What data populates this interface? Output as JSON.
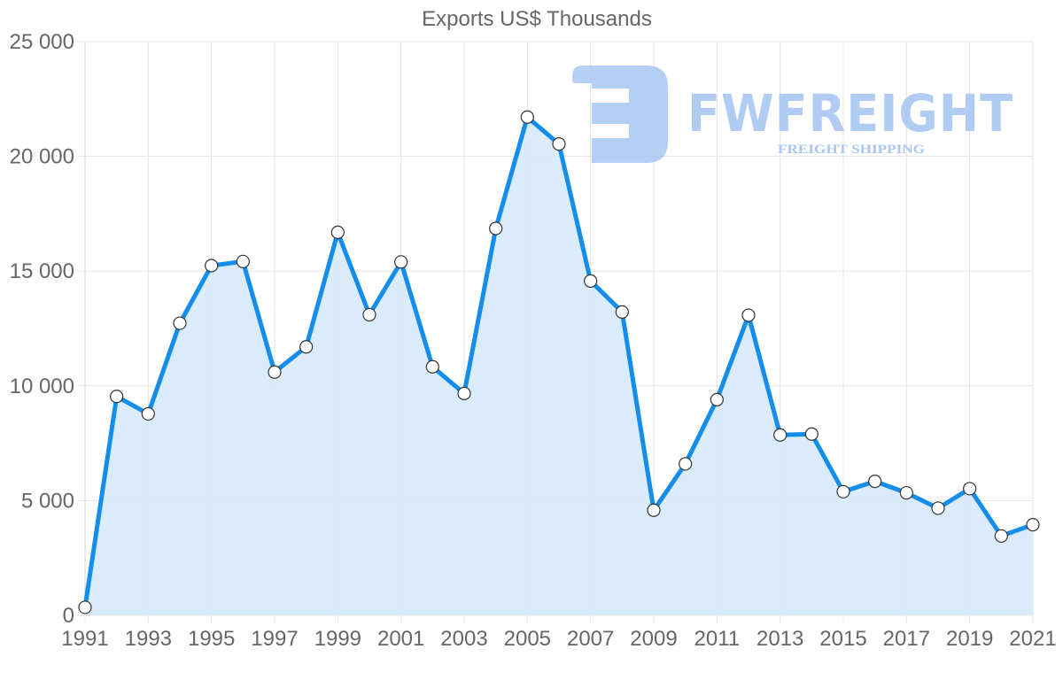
{
  "chart_data": {
    "type": "area",
    "title": "Exports US$ Thousands",
    "xlabel": "",
    "ylabel": "",
    "ylim": [
      0,
      25000
    ],
    "xlim": [
      1991,
      2021
    ],
    "grid": true,
    "legend": "none",
    "y_ticks": [
      "0",
      "5 000",
      "10 000",
      "15 000",
      "20 000",
      "25 000"
    ],
    "y_tick_values": [
      0,
      5000,
      10000,
      15000,
      20000,
      25000
    ],
    "x_tick_labels": [
      "1991",
      "1993",
      "1995",
      "1997",
      "1999",
      "2001",
      "2003",
      "2005",
      "2007",
      "2009",
      "2011",
      "2013",
      "2015",
      "2017",
      "2019",
      "2021"
    ],
    "x": [
      1991,
      1992,
      1993,
      1994,
      1995,
      1996,
      1997,
      1998,
      1999,
      2000,
      2001,
      2002,
      2003,
      2004,
      2005,
      2006,
      2007,
      2008,
      2009,
      2010,
      2011,
      2012,
      2013,
      2014,
      2015,
      2016,
      2017,
      2018,
      2019,
      2020,
      2021
    ],
    "series": [
      {
        "name": "Exports US$ Thousands",
        "values": [
          350,
          9540,
          8780,
          12730,
          15240,
          15420,
          10600,
          11700,
          16690,
          13100,
          15400,
          10830,
          9670,
          16860,
          21710,
          20540,
          14570,
          13220,
          4580,
          6600,
          9400,
          13080,
          7860,
          7900,
          5390,
          5840,
          5340,
          4670,
          5520,
          3460,
          3950
        ]
      }
    ],
    "colors": {
      "line": "#148DEB",
      "fill": "#D8EBFB",
      "point_fill": "#FFFFFF",
      "point_stroke": "#333333",
      "grid": "#E3E3E3",
      "axis_text": "#666666"
    }
  },
  "watermark": {
    "brand": "FWFREIGHT",
    "tagline": "FREIGHT SHIPPING",
    "color": "#A9C7F2"
  }
}
